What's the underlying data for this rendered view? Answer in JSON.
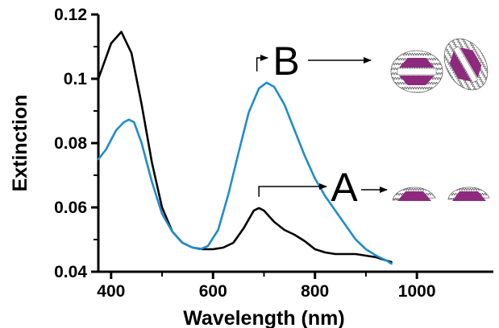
{
  "chart_data": {
    "type": "line",
    "title": "",
    "xlabel": "Wavelength (nm)",
    "ylabel": "Extinction",
    "xlim": [
      375,
      1150
    ],
    "ylim": [
      0.04,
      0.12
    ],
    "x_ticks": [
      400,
      600,
      800,
      1000
    ],
    "x_tick_labels": [
      "400",
      "600",
      "800",
      "1000"
    ],
    "y_ticks": [
      0.04,
      0.06,
      0.08,
      0.1,
      0.12
    ],
    "y_tick_labels": [
      "0.04",
      "0.06",
      "0.08",
      "0.1",
      "0.12"
    ],
    "grid": false,
    "series": [
      {
        "color": "#000000",
        "x": [
          375,
          400,
          420,
          440,
          460,
          480,
          500,
          520,
          540,
          560,
          580,
          600,
          620,
          640,
          660,
          680,
          690,
          700,
          720,
          740,
          760,
          780,
          800,
          820,
          840,
          860,
          880,
          900,
          920,
          940,
          950
        ],
        "y": [
          0.1,
          0.111,
          0.1146,
          0.108,
          0.092,
          0.074,
          0.06,
          0.0525,
          0.049,
          0.0475,
          0.047,
          0.047,
          0.0475,
          0.049,
          0.0535,
          0.059,
          0.0598,
          0.059,
          0.0555,
          0.053,
          0.0515,
          0.0495,
          0.047,
          0.046,
          0.0455,
          0.0455,
          0.0455,
          0.045,
          0.0445,
          0.0435,
          0.043
        ]
      },
      {
        "color": "#1f8ccf",
        "x": [
          375,
          390,
          410,
          425,
          435,
          445,
          460,
          480,
          500,
          520,
          540,
          560,
          575,
          590,
          610,
          630,
          650,
          670,
          690,
          705,
          720,
          740,
          760,
          780,
          800,
          820,
          840,
          860,
          880,
          900,
          920,
          940,
          950
        ],
        "y": [
          0.075,
          0.078,
          0.084,
          0.0865,
          0.0873,
          0.0865,
          0.08,
          0.068,
          0.058,
          0.0525,
          0.049,
          0.0475,
          0.047,
          0.048,
          0.053,
          0.064,
          0.077,
          0.0895,
          0.097,
          0.0988,
          0.0975,
          0.092,
          0.084,
          0.076,
          0.069,
          0.0635,
          0.059,
          0.0545,
          0.05,
          0.047,
          0.045,
          0.0435,
          0.0425
        ]
      }
    ],
    "annotations": [
      {
        "text": "A",
        "x": 690,
        "y": 0.0598
      },
      {
        "text": "B",
        "x": 705,
        "y": 0.0988
      }
    ]
  }
}
